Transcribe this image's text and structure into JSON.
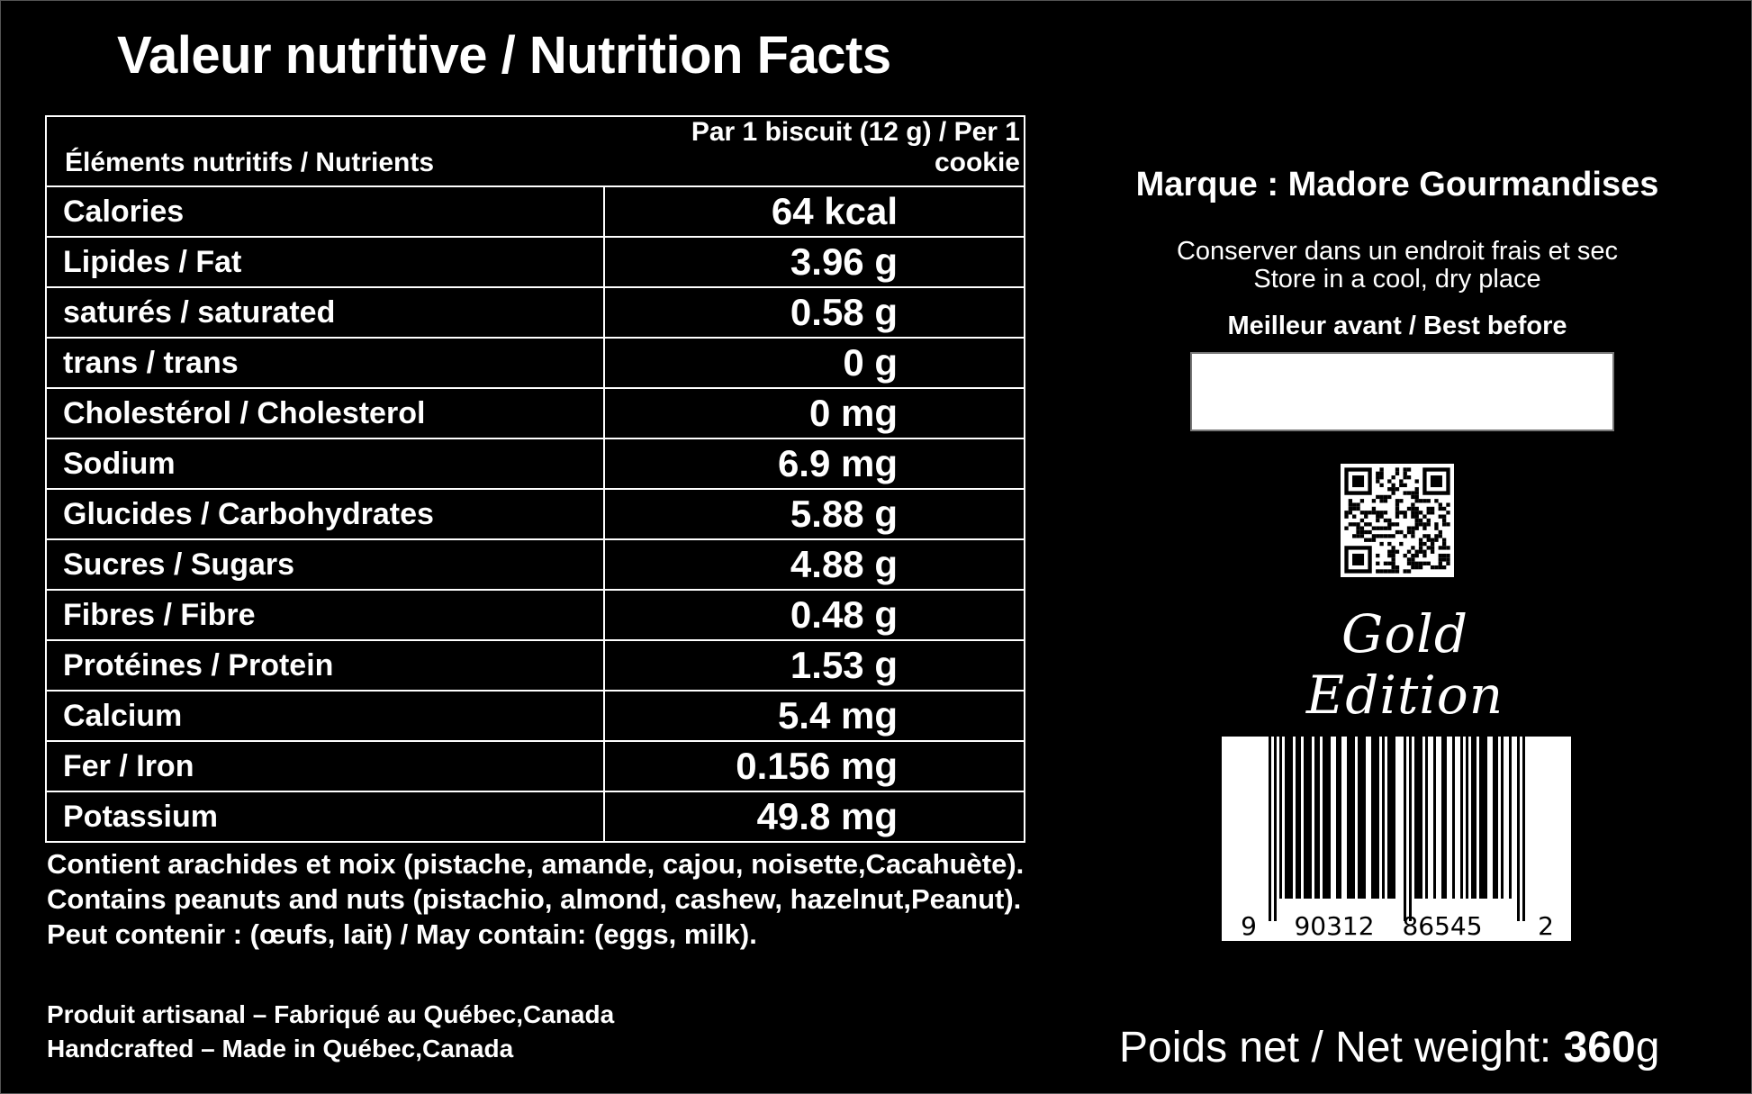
{
  "title": "Valeur nutritive / Nutrition Facts",
  "table": {
    "header_nutrients": "Éléments nutritifs / Nutrients",
    "header_serving": "Par 1 biscuit (12 g) / Per 1 cookie",
    "rows": [
      {
        "label": "Calories",
        "value": "64 kcal"
      },
      {
        "label": "Lipides / Fat",
        "value": "3.96 g"
      },
      {
        "label": "saturés / saturated",
        "value": "0.58 g"
      },
      {
        "label": "trans / trans",
        "value": "0 g"
      },
      {
        "label": "Cholestérol / Cholesterol",
        "value": "0 mg"
      },
      {
        "label": "Sodium",
        "value": "6.9 mg"
      },
      {
        "label": "Glucides / Carbohydrates",
        "value": "5.88 g"
      },
      {
        "label": "Sucres / Sugars",
        "value": "4.88 g"
      },
      {
        "label": "Fibres / Fibre",
        "value": "0.48 g"
      },
      {
        "label": "Protéines / Protein",
        "value": "1.53 g"
      },
      {
        "label": "Calcium",
        "value": "5.4 mg"
      },
      {
        "label": "Fer / Iron",
        "value": "0.156 mg"
      },
      {
        "label": "Potassium",
        "value": "49.8 mg"
      }
    ]
  },
  "allergens": [
    "Contient arachides et noix (pistache, amande, cajou, noisette,Cacahuète).",
    "Contains peanuts and nuts (pistachio, almond, cashew, hazelnut,Peanut).",
    "Peut contenir : (œufs, lait) / May contain: (eggs, milk)."
  ],
  "footer": [
    "Produit artisanal – Fabriqué au Québec,Canada",
    "Handcrafted – Made in Québec,Canada"
  ],
  "brand": {
    "label": "Marque :",
    "name": "Madore Gourmandises"
  },
  "storage": [
    "Conserver dans un endroit frais et sec",
    "Store in a cool, dry place"
  ],
  "best_before_label": "Meilleur avant / Best before",
  "logo_text": "Gold Edition",
  "barcode": {
    "digits": [
      "9",
      "90312",
      "86545",
      "2"
    ]
  },
  "net_weight": {
    "label": "Poids net / Net weight:",
    "value": "360",
    "unit": "g"
  }
}
